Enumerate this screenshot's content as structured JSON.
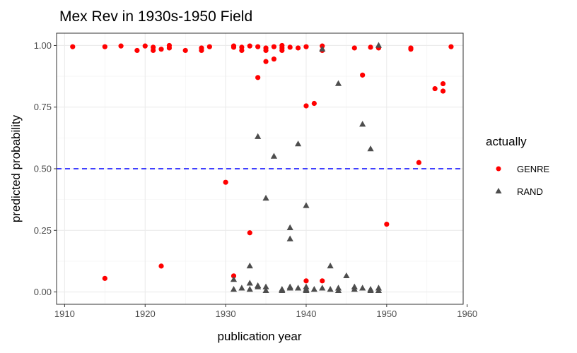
{
  "chart_data": {
    "type": "scatter",
    "title": "Mex Rev in 1930s-1950 Field",
    "xlabel": "publication year",
    "ylabel": "predicted probability",
    "xlim": [
      1909,
      1959.5
    ],
    "ylim": [
      -0.05,
      1.05
    ],
    "x_ticks": [
      1910,
      1920,
      1930,
      1940,
      1950,
      1960
    ],
    "y_ticks": [
      0.0,
      0.25,
      0.5,
      0.75,
      1.0
    ],
    "x_tick_labels": [
      "1910",
      "1920",
      "1930",
      "1940",
      "1950",
      "1960"
    ],
    "y_tick_labels": [
      "0.00",
      "0.25",
      "0.50",
      "0.75",
      "1.00"
    ],
    "grid": true,
    "threshold": {
      "y": 0.5,
      "color": "#0000ff",
      "style": "dashed"
    },
    "legend": {
      "title": "actually",
      "position": "right",
      "entries": [
        {
          "label": "GENRE",
          "shape": "circle",
          "color": "#ff0000"
        },
        {
          "label": "RAND",
          "shape": "triangle",
          "color": "#4d4d4d"
        }
      ]
    },
    "series": [
      {
        "name": "GENRE",
        "shape": "circle",
        "color": "#ff0000",
        "points": [
          [
            1911,
            0.995
          ],
          [
            1915,
            0.995
          ],
          [
            1917,
            0.998
          ],
          [
            1919,
            0.98
          ],
          [
            1920,
            0.998
          ],
          [
            1921,
            0.98
          ],
          [
            1921,
            0.993
          ],
          [
            1922,
            0.985
          ],
          [
            1923,
            0.99
          ],
          [
            1923,
            1.0
          ],
          [
            1925,
            0.98
          ],
          [
            1927,
            0.99
          ],
          [
            1927,
            0.98
          ],
          [
            1928,
            0.995
          ],
          [
            1931,
            0.998
          ],
          [
            1931,
            0.993
          ],
          [
            1932,
            0.98
          ],
          [
            1932,
            0.993
          ],
          [
            1933,
            0.998
          ],
          [
            1934,
            0.995
          ],
          [
            1935,
            0.98
          ],
          [
            1935,
            0.99
          ],
          [
            1936,
            0.995
          ],
          [
            1937,
            0.98
          ],
          [
            1937,
            0.99
          ],
          [
            1937,
            1.0
          ],
          [
            1938,
            0.993
          ],
          [
            1939,
            0.99
          ],
          [
            1940,
            0.995
          ],
          [
            1942,
            0.98
          ],
          [
            1942,
            0.998
          ],
          [
            1946,
            0.99
          ],
          [
            1948,
            0.993
          ],
          [
            1949,
            0.99
          ],
          [
            1953,
            0.985
          ],
          [
            1953,
            0.99
          ],
          [
            1958,
            0.995
          ],
          [
            1935,
            0.935
          ],
          [
            1936,
            0.945
          ],
          [
            1934,
            0.87
          ],
          [
            1947,
            0.88
          ],
          [
            1940,
            0.755
          ],
          [
            1941,
            0.765
          ],
          [
            1956,
            0.825
          ],
          [
            1957,
            0.815
          ],
          [
            1957,
            0.845
          ],
          [
            1954,
            0.525
          ],
          [
            1930,
            0.445
          ],
          [
            1950,
            0.275
          ],
          [
            1933,
            0.24
          ],
          [
            1922,
            0.105
          ],
          [
            1915,
            0.055
          ],
          [
            1931,
            0.065
          ],
          [
            1940,
            0.045
          ],
          [
            1942,
            0.045
          ]
        ]
      },
      {
        "name": "RAND",
        "shape": "triangle",
        "color": "#4d4d4d",
        "points": [
          [
            1942,
            0.985
          ],
          [
            1949,
            1.0
          ],
          [
            1944,
            0.845
          ],
          [
            1947,
            0.68
          ],
          [
            1934,
            0.63
          ],
          [
            1939,
            0.6
          ],
          [
            1948,
            0.58
          ],
          [
            1936,
            0.55
          ],
          [
            1935,
            0.38
          ],
          [
            1940,
            0.35
          ],
          [
            1938,
            0.26
          ],
          [
            1938,
            0.215
          ],
          [
            1933,
            0.105
          ],
          [
            1943,
            0.105
          ],
          [
            1945,
            0.065
          ],
          [
            1931,
            0.05
          ],
          [
            1931,
            0.01
          ],
          [
            1932,
            0.015
          ],
          [
            1933,
            0.01
          ],
          [
            1933,
            0.035
          ],
          [
            1934,
            0.02
          ],
          [
            1934,
            0.025
          ],
          [
            1935,
            0.005
          ],
          [
            1935,
            0.02
          ],
          [
            1937,
            0.01
          ],
          [
            1937,
            0.005
          ],
          [
            1938,
            0.02
          ],
          [
            1938,
            0.015
          ],
          [
            1939,
            0.015
          ],
          [
            1940,
            0.005
          ],
          [
            1940,
            0.02
          ],
          [
            1941,
            0.01
          ],
          [
            1942,
            0.015
          ],
          [
            1943,
            0.01
          ],
          [
            1944,
            0.015
          ],
          [
            1944,
            0.005
          ],
          [
            1946,
            0.02
          ],
          [
            1946,
            0.01
          ],
          [
            1947,
            0.015
          ],
          [
            1948,
            0.01
          ],
          [
            1948,
            0.005
          ],
          [
            1949,
            0.015
          ],
          [
            1949,
            0.005
          ],
          [
            1940,
            0.01
          ]
        ]
      }
    ]
  }
}
